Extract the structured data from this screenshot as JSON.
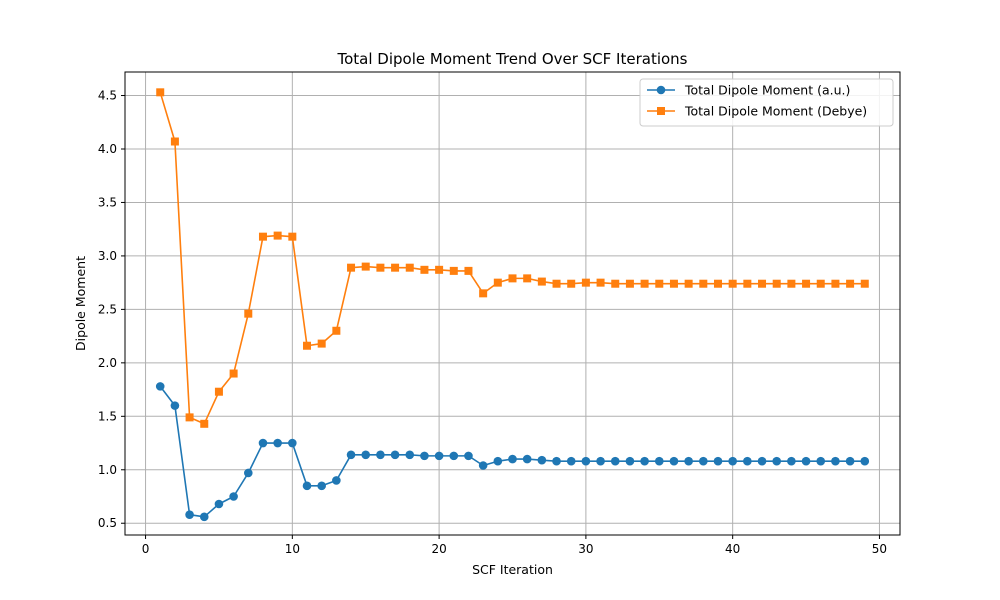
{
  "chart_data": {
    "type": "line",
    "title": "Total Dipole Moment Trend Over SCF Iterations",
    "xlabel": "SCF Iteration",
    "ylabel": "Dipole Moment",
    "xlim": [
      -1.4,
      51.4
    ],
    "ylim": [
      0.39,
      4.72
    ],
    "xticks": [
      0,
      10,
      20,
      30,
      40,
      50
    ],
    "yticks": [
      0.5,
      1.0,
      1.5,
      2.0,
      2.5,
      3.0,
      3.5,
      4.0,
      4.5
    ],
    "grid": true,
    "legend_position": "top-right",
    "x": [
      1,
      2,
      3,
      4,
      5,
      6,
      7,
      8,
      9,
      10,
      11,
      12,
      13,
      14,
      15,
      16,
      17,
      18,
      19,
      20,
      21,
      22,
      23,
      24,
      25,
      26,
      27,
      28,
      29,
      30,
      31,
      32,
      33,
      34,
      35,
      36,
      37,
      38,
      39,
      40,
      41,
      42,
      43,
      44,
      45,
      46,
      47,
      48,
      49
    ],
    "series": [
      {
        "name": "Total Dipole Moment (a.u.)",
        "color": "#1f77b4",
        "marker": "circle",
        "values": [
          1.78,
          1.6,
          0.58,
          0.56,
          0.68,
          0.75,
          0.97,
          1.25,
          1.25,
          1.25,
          0.85,
          0.85,
          0.9,
          1.14,
          1.14,
          1.14,
          1.14,
          1.14,
          1.13,
          1.13,
          1.13,
          1.13,
          1.04,
          1.08,
          1.1,
          1.1,
          1.09,
          1.08,
          1.08,
          1.08,
          1.08,
          1.08,
          1.08,
          1.08,
          1.08,
          1.08,
          1.08,
          1.08,
          1.08,
          1.08,
          1.08,
          1.08,
          1.08,
          1.08,
          1.08,
          1.08,
          1.08,
          1.08,
          1.08
        ]
      },
      {
        "name": "Total Dipole Moment (Debye)",
        "color": "#ff7f0e",
        "marker": "square",
        "values": [
          4.53,
          4.07,
          1.49,
          1.43,
          1.73,
          1.9,
          2.46,
          3.18,
          3.19,
          3.18,
          2.16,
          2.18,
          2.3,
          2.89,
          2.9,
          2.89,
          2.89,
          2.89,
          2.87,
          2.87,
          2.86,
          2.86,
          2.65,
          2.75,
          2.79,
          2.79,
          2.76,
          2.74,
          2.74,
          2.75,
          2.75,
          2.74,
          2.74,
          2.74,
          2.74,
          2.74,
          2.74,
          2.74,
          2.74,
          2.74,
          2.74,
          2.74,
          2.74,
          2.74,
          2.74,
          2.74,
          2.74,
          2.74,
          2.74
        ]
      }
    ]
  }
}
